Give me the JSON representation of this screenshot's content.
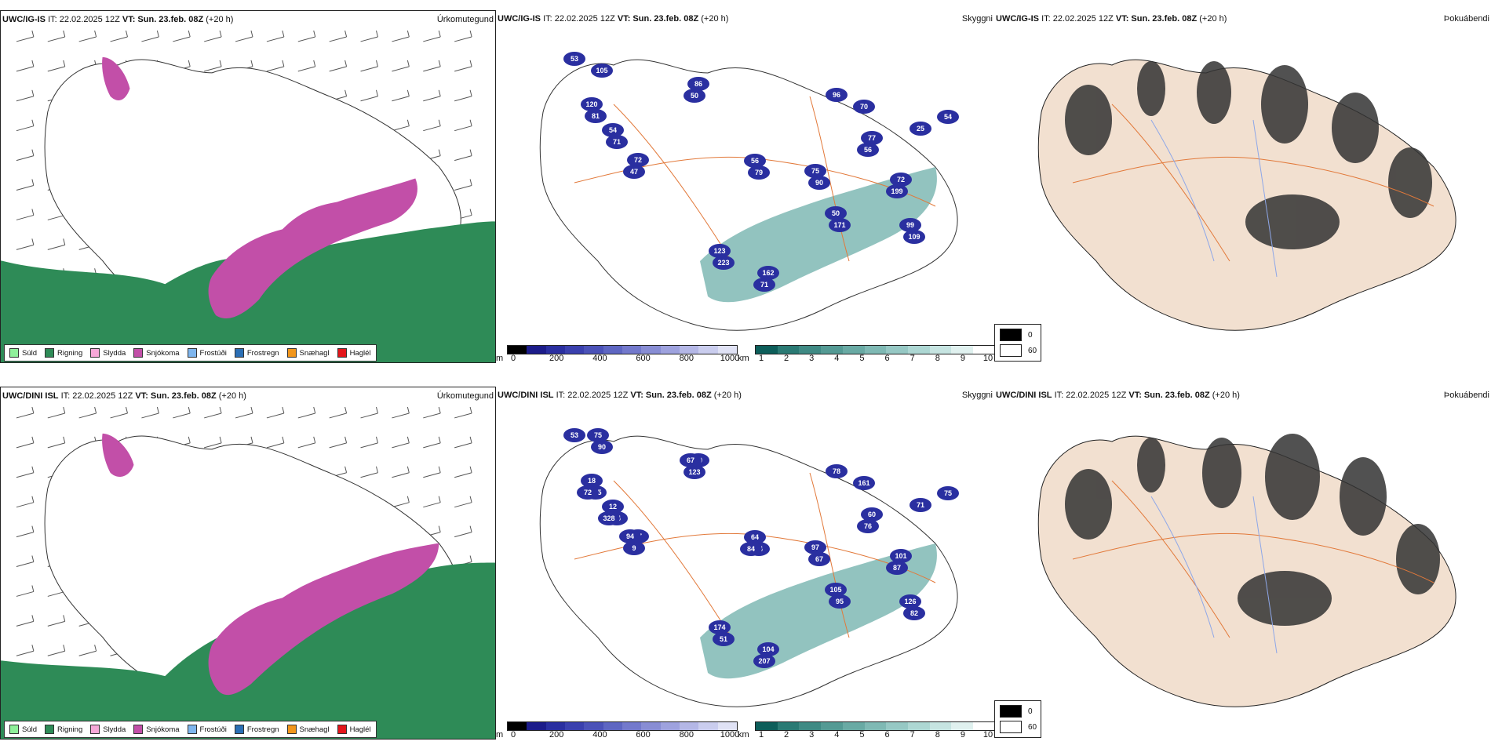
{
  "rows": [
    {
      "model": "UWC/IG-IS",
      "it_prefix": "IT: 22.02.2025 12Z",
      "vt_label": "VT: Sun. 23.feb. 08Z",
      "lead": "(+20 h)",
      "panels": [
        {
          "kind": "ptype",
          "title_right": "Úrkomutegund"
        },
        {
          "kind": "cloud",
          "title_right": "Skyggni",
          "labels": [
            "53",
            "81",
            "71",
            "72",
            "86",
            "79",
            "90",
            "77",
            "72",
            "109",
            "223",
            "162",
            "96",
            "25",
            "171",
            "105",
            "120",
            "54",
            "47",
            "50",
            "56",
            "75",
            "56",
            "199",
            "99",
            "123",
            "71",
            "70",
            "54",
            "50"
          ]
        },
        {
          "kind": "fog",
          "title_right": "Þokuábendi"
        }
      ]
    },
    {
      "model": "UWC/DINI ISL",
      "it_prefix": "IT: 22.02.2025 12Z",
      "vt_label": "VT: Sun. 23.feb. 08Z",
      "lead": "(+20 h)",
      "panels": [
        {
          "kind": "ptype",
          "title_right": "Úrkomutegund"
        },
        {
          "kind": "cloud",
          "title_right": "Skyggni",
          "labels": [
            "53",
            "105",
            "74",
            "87",
            "79",
            "84",
            "67",
            "60",
            "101",
            "82",
            "51",
            "104",
            "78",
            "71",
            "95",
            "90",
            "18",
            "12",
            "9",
            "123",
            "64",
            "97",
            "76",
            "87",
            "126",
            "174",
            "207",
            "161",
            "75",
            "105",
            "75",
            "72",
            "328",
            "94",
            "67",
            "84"
          ]
        },
        {
          "kind": "fog",
          "title_right": "Þokuábendi"
        }
      ]
    }
  ],
  "ptype_legend": [
    {
      "label": "Súld",
      "color": "#8ff09a"
    },
    {
      "label": "Rigning",
      "color": "#2e8b57"
    },
    {
      "label": "Slydda",
      "color": "#f7a8d8"
    },
    {
      "label": "Snjókoma",
      "color": "#c24fa8"
    },
    {
      "label": "Frostúði",
      "color": "#7fb6ee"
    },
    {
      "label": "Frostregn",
      "color": "#2b6fb5"
    },
    {
      "label": "Snæhagl",
      "color": "#f2961b"
    },
    {
      "label": "Haglél",
      "color": "#e3161b"
    }
  ],
  "cloud_base_bar": {
    "unit": "m",
    "ticks": [
      "0",
      "200",
      "400",
      "600",
      "800",
      "1000"
    ],
    "colors": [
      "#000000",
      "#1c1c8a",
      "#2a2fa0",
      "#3a40ae",
      "#4b52b8",
      "#5e66c2",
      "#7379cc",
      "#888dd4",
      "#9ea2de",
      "#b4b7e6",
      "#cacdee",
      "#e0e2f5"
    ]
  },
  "visibility_bar": {
    "unit": "km",
    "ticks": [
      "1",
      "2",
      "3",
      "4",
      "5",
      "6",
      "7",
      "8",
      "9",
      "10"
    ],
    "colors": [
      "#0d5e5a",
      "#2a7a74",
      "#3f8a84",
      "#549a94",
      "#69aaa4",
      "#7fb9b4",
      "#96c8c4",
      "#add7d3",
      "#c6e4e1",
      "#e0f1ef",
      "#ffffff"
    ]
  },
  "fog_legend": [
    {
      "value": "0",
      "color": "#000000"
    },
    {
      "value": "60",
      "color": "#ffffff"
    }
  ],
  "colors": {
    "land": "#f2e0d0",
    "road": "#e2793a",
    "river": "#8ea7e8",
    "coast": "#222222"
  }
}
